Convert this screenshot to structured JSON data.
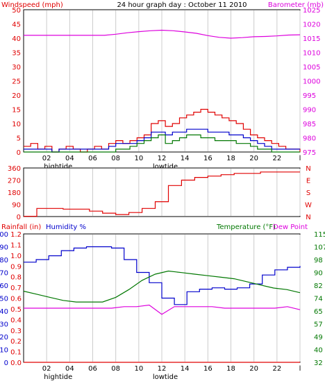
{
  "title": "24 hour graph day : October 11 2010",
  "colors": {
    "red": "#e00000",
    "blue": "#0000cc",
    "green": "#007700",
    "magenta": "#dd00dd",
    "dark": "#000000",
    "grid": "#cccccc",
    "bg": "#ffffff"
  },
  "chart_data": [
    {
      "type": "line",
      "id": "wind_baro",
      "left_label": "Windspeed (mph)",
      "right_label": "Barometer (mb)",
      "ylim_left": [
        0,
        50
      ],
      "yticks_left": [
        "0",
        "5",
        "10",
        "15",
        "20",
        "25",
        "30",
        "35",
        "40",
        "45",
        "50"
      ],
      "ylim_right": [
        975,
        1025
      ],
      "yticks_right": [
        "975",
        "980",
        "985",
        "990",
        "995",
        "1000",
        "1005",
        "1010",
        "1015",
        "1020",
        "1025"
      ],
      "xlim": [
        0,
        24
      ],
      "xticks": [
        "02",
        "04",
        "06",
        "08",
        "10",
        "12",
        "14",
        "16",
        "18",
        "20",
        "22",
        "l"
      ],
      "tide_labels": [
        {
          "x": 3,
          "text": "hightide"
        },
        {
          "x": 12.3,
          "text": "lowtide"
        }
      ],
      "series": [
        {
          "key": "gust",
          "color": "#e00000",
          "values": [
            2,
            3,
            1,
            2,
            0,
            1,
            2,
            1,
            0,
            1,
            2,
            1,
            3,
            4,
            3,
            4,
            5,
            6,
            10,
            11,
            9,
            10,
            12,
            13,
            14,
            15,
            14,
            13,
            12,
            11,
            10,
            8,
            6,
            5,
            4,
            3,
            2,
            1,
            1,
            0
          ]
        },
        {
          "key": "avg",
          "color": "#0000cc",
          "values": [
            1,
            1,
            1,
            1,
            0,
            1,
            1,
            1,
            1,
            1,
            1,
            1,
            2,
            3,
            3,
            3,
            4,
            5,
            7,
            7,
            6,
            7,
            7,
            8,
            8,
            8,
            7,
            7,
            7,
            6,
            6,
            5,
            4,
            3,
            2,
            1,
            1,
            1,
            1,
            1
          ]
        },
        {
          "key": "green",
          "color": "#007700",
          "values": [
            0,
            0,
            0,
            0,
            0,
            0,
            0,
            0,
            0,
            0,
            0,
            0,
            0,
            1,
            1,
            2,
            3,
            4,
            5,
            6,
            3,
            4,
            5,
            6,
            6,
            5,
            5,
            4,
            4,
            4,
            3,
            3,
            2,
            1,
            1,
            0,
            0,
            0,
            0,
            0
          ]
        },
        {
          "key": "barometer",
          "color": "#dd00dd",
          "axis": "right",
          "values": [
            1016,
            1016,
            1016,
            1016,
            1016,
            1016,
            1016,
            1016,
            1016.4,
            1016.9,
            1017.3,
            1017.6,
            1017.8,
            1017.6,
            1017.2,
            1016.7,
            1015.9,
            1015.3,
            1015,
            1015.2,
            1015.5,
            1015.6,
            1015.8,
            1016.1,
            1016.2
          ]
        }
      ]
    },
    {
      "type": "line",
      "id": "wind_direction",
      "ylim": [
        0,
        360
      ],
      "yticks": [
        "0",
        "90",
        "180",
        "270",
        "360"
      ],
      "compass": [
        "N",
        "W",
        "S",
        "E",
        "N"
      ],
      "xlim": [
        0,
        24
      ],
      "series": [
        {
          "key": "direction",
          "color": "#e00000",
          "values": [
            2,
            60,
            60,
            55,
            55,
            40,
            25,
            15,
            30,
            60,
            110,
            230,
            270,
            290,
            300,
            310,
            320,
            320,
            330,
            330,
            330,
            330
          ]
        }
      ]
    },
    {
      "type": "line",
      "id": "rain_humidity_temp",
      "rain_label": "Rainfall (in)",
      "humidity_label": "Humidity %",
      "temp_label": "Temperature (°F)",
      "dewpoint_label": "Dew Point",
      "ylim_humidity": [
        0,
        100
      ],
      "yticks_humidity": [
        "0",
        "10",
        "20",
        "30",
        "40",
        "50",
        "60",
        "70",
        "80",
        "90",
        "100"
      ],
      "yticks_rain": [
        "0.0",
        "0.1",
        "0.2",
        "0.3",
        "0.4",
        "0.5",
        "0.6",
        "0.7",
        "0.8",
        "0.9",
        "1.0",
        "1.1",
        "1.2"
      ],
      "ylim_temp": [
        32,
        115
      ],
      "yticks_temp": [
        "32",
        "40",
        "49",
        "57",
        "65",
        "74",
        "82",
        "90",
        "98",
        "107",
        "115"
      ],
      "xlim": [
        0,
        24
      ],
      "xticks": [
        "02",
        "04",
        "06",
        "08",
        "10",
        "12",
        "14",
        "16",
        "18",
        "20",
        "22",
        "l"
      ],
      "tide_labels": [
        {
          "x": 3,
          "text": "hightide"
        },
        {
          "x": 12.3,
          "text": "lowtide"
        }
      ],
      "series": [
        {
          "key": "humidity",
          "color": "#0000cc",
          "axis": "humidity",
          "values": [
            78,
            80,
            83,
            87,
            89,
            90,
            90,
            89,
            80,
            70,
            62,
            50,
            45,
            55,
            57,
            58,
            57,
            58,
            61,
            68,
            72,
            74,
            75
          ]
        },
        {
          "key": "temperature",
          "color": "#007700",
          "axis": "temp",
          "values": [
            78,
            76,
            74,
            72,
            71,
            71,
            71,
            74,
            79,
            85,
            89,
            91,
            90,
            89,
            88,
            87,
            86,
            84,
            82,
            80,
            79,
            77
          ]
        },
        {
          "key": "dewpoint",
          "color": "#dd00dd",
          "axis": "temp",
          "values": [
            67,
            67,
            67,
            67,
            67,
            67,
            67,
            67,
            68,
            68,
            69,
            63,
            68,
            68,
            68,
            68,
            67,
            67,
            67,
            67,
            67,
            68,
            66
          ]
        },
        {
          "key": "rainfall",
          "color": "#e00000",
          "axis": "rain",
          "values": [
            0,
            0,
            0,
            0,
            0,
            0,
            0,
            0,
            0,
            0,
            0,
            0,
            0
          ]
        }
      ]
    }
  ]
}
